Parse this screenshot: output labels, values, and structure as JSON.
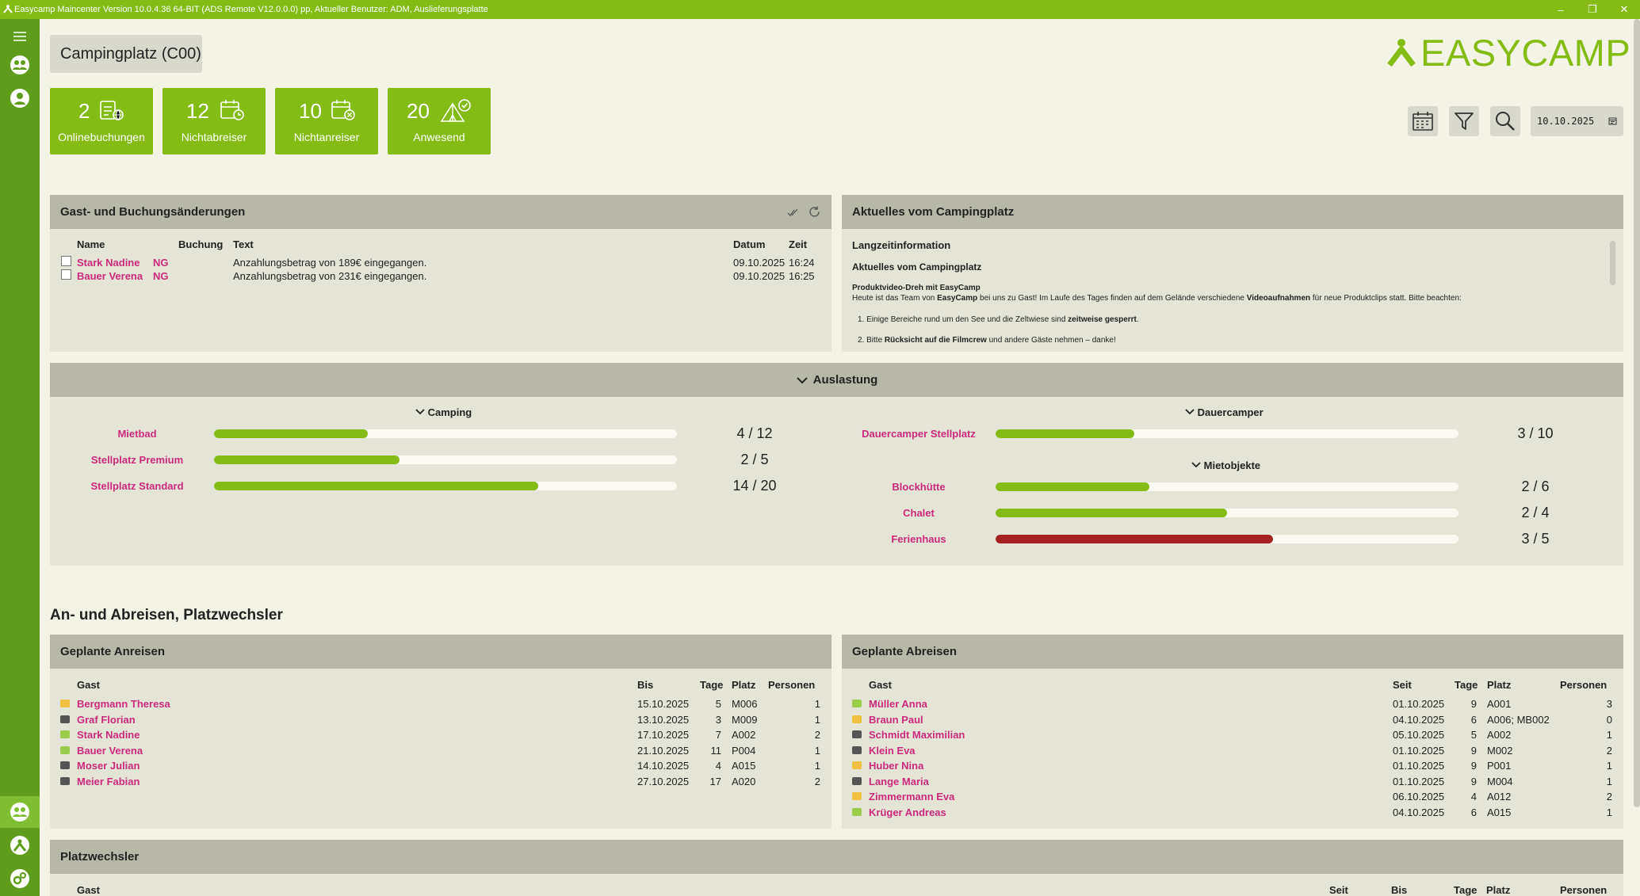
{
  "window": {
    "title": "Easycamp Maincenter Version 10.0.4.36 64-BIT (ADS Remote V12.0.0.0) pp, Aktueller Benutzer: ADM, Auslieferungsplatte",
    "min": "–",
    "max": "❐",
    "close": "✕"
  },
  "header": {
    "location": "Campingplatz (C00)",
    "logo": "EASYCAMP",
    "date": "10.10.2025"
  },
  "kpis": [
    {
      "value": "2",
      "label": "Onlinebuchungen",
      "icon": "online-booking-icon"
    },
    {
      "value": "12",
      "label": "Nichtabreiser",
      "icon": "calendar-clock-icon"
    },
    {
      "value": "10",
      "label": "Nichtanreiser",
      "icon": "calendar-x-icon"
    },
    {
      "value": "20",
      "label": "Anwesend",
      "icon": "tent-check-icon"
    }
  ],
  "changes": {
    "title": "Gast- und Buchungsänderungen",
    "columns": {
      "name": "Name",
      "booking": "Buchung",
      "text": "Text",
      "date": "Datum",
      "time": "Zeit"
    },
    "rows": [
      {
        "name": "Stark Nadine",
        "tag": "NG",
        "text": "Anzahlungsbetrag von 189€ eingegangen.",
        "date": "09.10.2025",
        "time": "16:24"
      },
      {
        "name": "Bauer Verena",
        "tag": "NG",
        "text": "Anzahlungsbetrag von 231€ eingegangen.",
        "date": "09.10.2025",
        "time": "16:25"
      }
    ]
  },
  "news": {
    "title": "Aktuelles vom Campingplatz",
    "heading1": "Langzeitinformation",
    "heading2": "Aktuelles vom Campingplatz",
    "subheading": "Produktvideo-Dreh mit EasyCamp",
    "p1_a": "Heute ist das Team von ",
    "p1_b": "EasyCamp",
    "p1_c": " bei uns zu Gast! Im Laufe des Tages finden auf dem Gelände verschiedene ",
    "p1_d": "Videoaufnahmen",
    "p1_e": " für neue Produktclips statt. Bitte beachten:",
    "li1_a": "1. Einige Bereiche rund um den See und die Zeltwiese sind ",
    "li1_b": "zeitweise gesperrt",
    "li1_c": ".",
    "li2_a": "2. Bitte ",
    "li2_b": "Rücksicht auf die Filmcrew",
    "li2_c": " und andere Gäste nehmen – danke!"
  },
  "auslastung": {
    "title": "Auslastung",
    "camping_title": "Camping",
    "dauer_title": "Dauercamper",
    "miet_title": "Mietobjekte",
    "green": "#84bb14",
    "red": "#a52121",
    "camping": [
      {
        "label": "Mietbad",
        "count": "4 / 12",
        "fill": 0.333
      },
      {
        "label": "Stellplatz Premium",
        "count": "2 / 5",
        "fill": 0.4
      },
      {
        "label": "Stellplatz Standard",
        "count": "14 / 20",
        "fill": 0.7
      }
    ],
    "dauer": [
      {
        "label": "Dauercamper Stellplatz",
        "count": "3 / 10",
        "fill": 0.3
      }
    ],
    "miet": [
      {
        "label": "Blockhütte",
        "count": "2 / 6",
        "fill": 0.333,
        "over": false
      },
      {
        "label": "Chalet",
        "count": "2 / 4",
        "fill": 0.5,
        "over": false
      },
      {
        "label": "Ferienhaus",
        "count": "3 / 5",
        "fill": 0.6,
        "over": true
      }
    ]
  },
  "arrivals_section": "An- und Abreisen, Platzwechsler",
  "arrivals": {
    "title": "Geplante Anreisen",
    "columns": {
      "guest": "Gast",
      "until": "Bis",
      "days": "Tage",
      "place": "Platz",
      "persons": "Personen"
    },
    "rows": [
      {
        "guest": "Bergmann Theresa",
        "until": "15.10.2025",
        "days": "5",
        "place": "M006",
        "persons": "1",
        "status": "#f0c040"
      },
      {
        "guest": "Graf Florian",
        "until": "13.10.2025",
        "days": "3",
        "place": "M009",
        "persons": "1",
        "status": "#555555"
      },
      {
        "guest": "Stark Nadine",
        "until": "17.10.2025",
        "days": "7",
        "place": "A002",
        "persons": "2",
        "status": "#9ccc4c"
      },
      {
        "guest": "Bauer Verena",
        "until": "21.10.2025",
        "days": "11",
        "place": "P004",
        "persons": "1",
        "status": "#9ccc4c"
      },
      {
        "guest": "Moser Julian",
        "until": "14.10.2025",
        "days": "4",
        "place": "A015",
        "persons": "1",
        "status": "#555555"
      },
      {
        "guest": "Meier Fabian",
        "until": "27.10.2025",
        "days": "17",
        "place": "A020",
        "persons": "2",
        "status": "#555555"
      }
    ]
  },
  "departures": {
    "title": "Geplante Abreisen",
    "columns": {
      "guest": "Gast",
      "since": "Seit",
      "days": "Tage",
      "place": "Platz",
      "persons": "Personen"
    },
    "rows": [
      {
        "guest": "Müller Anna",
        "since": "01.10.2025",
        "days": "9",
        "place": "A001",
        "persons": "3",
        "status": "#9ccc4c"
      },
      {
        "guest": "Braun Paul",
        "since": "04.10.2025",
        "days": "6",
        "place": "A006; MB002",
        "persons": "0",
        "status": "#f0c040"
      },
      {
        "guest": "Schmidt Maximilian",
        "since": "05.10.2025",
        "days": "5",
        "place": "A002",
        "persons": "1",
        "status": "#555555"
      },
      {
        "guest": "Klein Eva",
        "since": "01.10.2025",
        "days": "9",
        "place": "M002",
        "persons": "2",
        "status": "#555555"
      },
      {
        "guest": "Huber Nina",
        "since": "01.10.2025",
        "days": "9",
        "place": "P001",
        "persons": "1",
        "status": "#f0c040"
      },
      {
        "guest": "Lange Maria",
        "since": "01.10.2025",
        "days": "9",
        "place": "M004",
        "persons": "1",
        "status": "#555555"
      },
      {
        "guest": "Zimmermann Eva",
        "since": "06.10.2025",
        "days": "4",
        "place": "A012",
        "persons": "2",
        "status": "#f0c040"
      },
      {
        "guest": "Krüger Andreas",
        "since": "04.10.2025",
        "days": "6",
        "place": "A015",
        "persons": "1",
        "status": "#9ccc4c"
      }
    ]
  },
  "switchers": {
    "title": "Platzwechsler",
    "columns": {
      "guest": "Gast",
      "since": "Seit",
      "until": "Bis",
      "days": "Tage",
      "place": "Platz",
      "persons": "Personen"
    }
  }
}
